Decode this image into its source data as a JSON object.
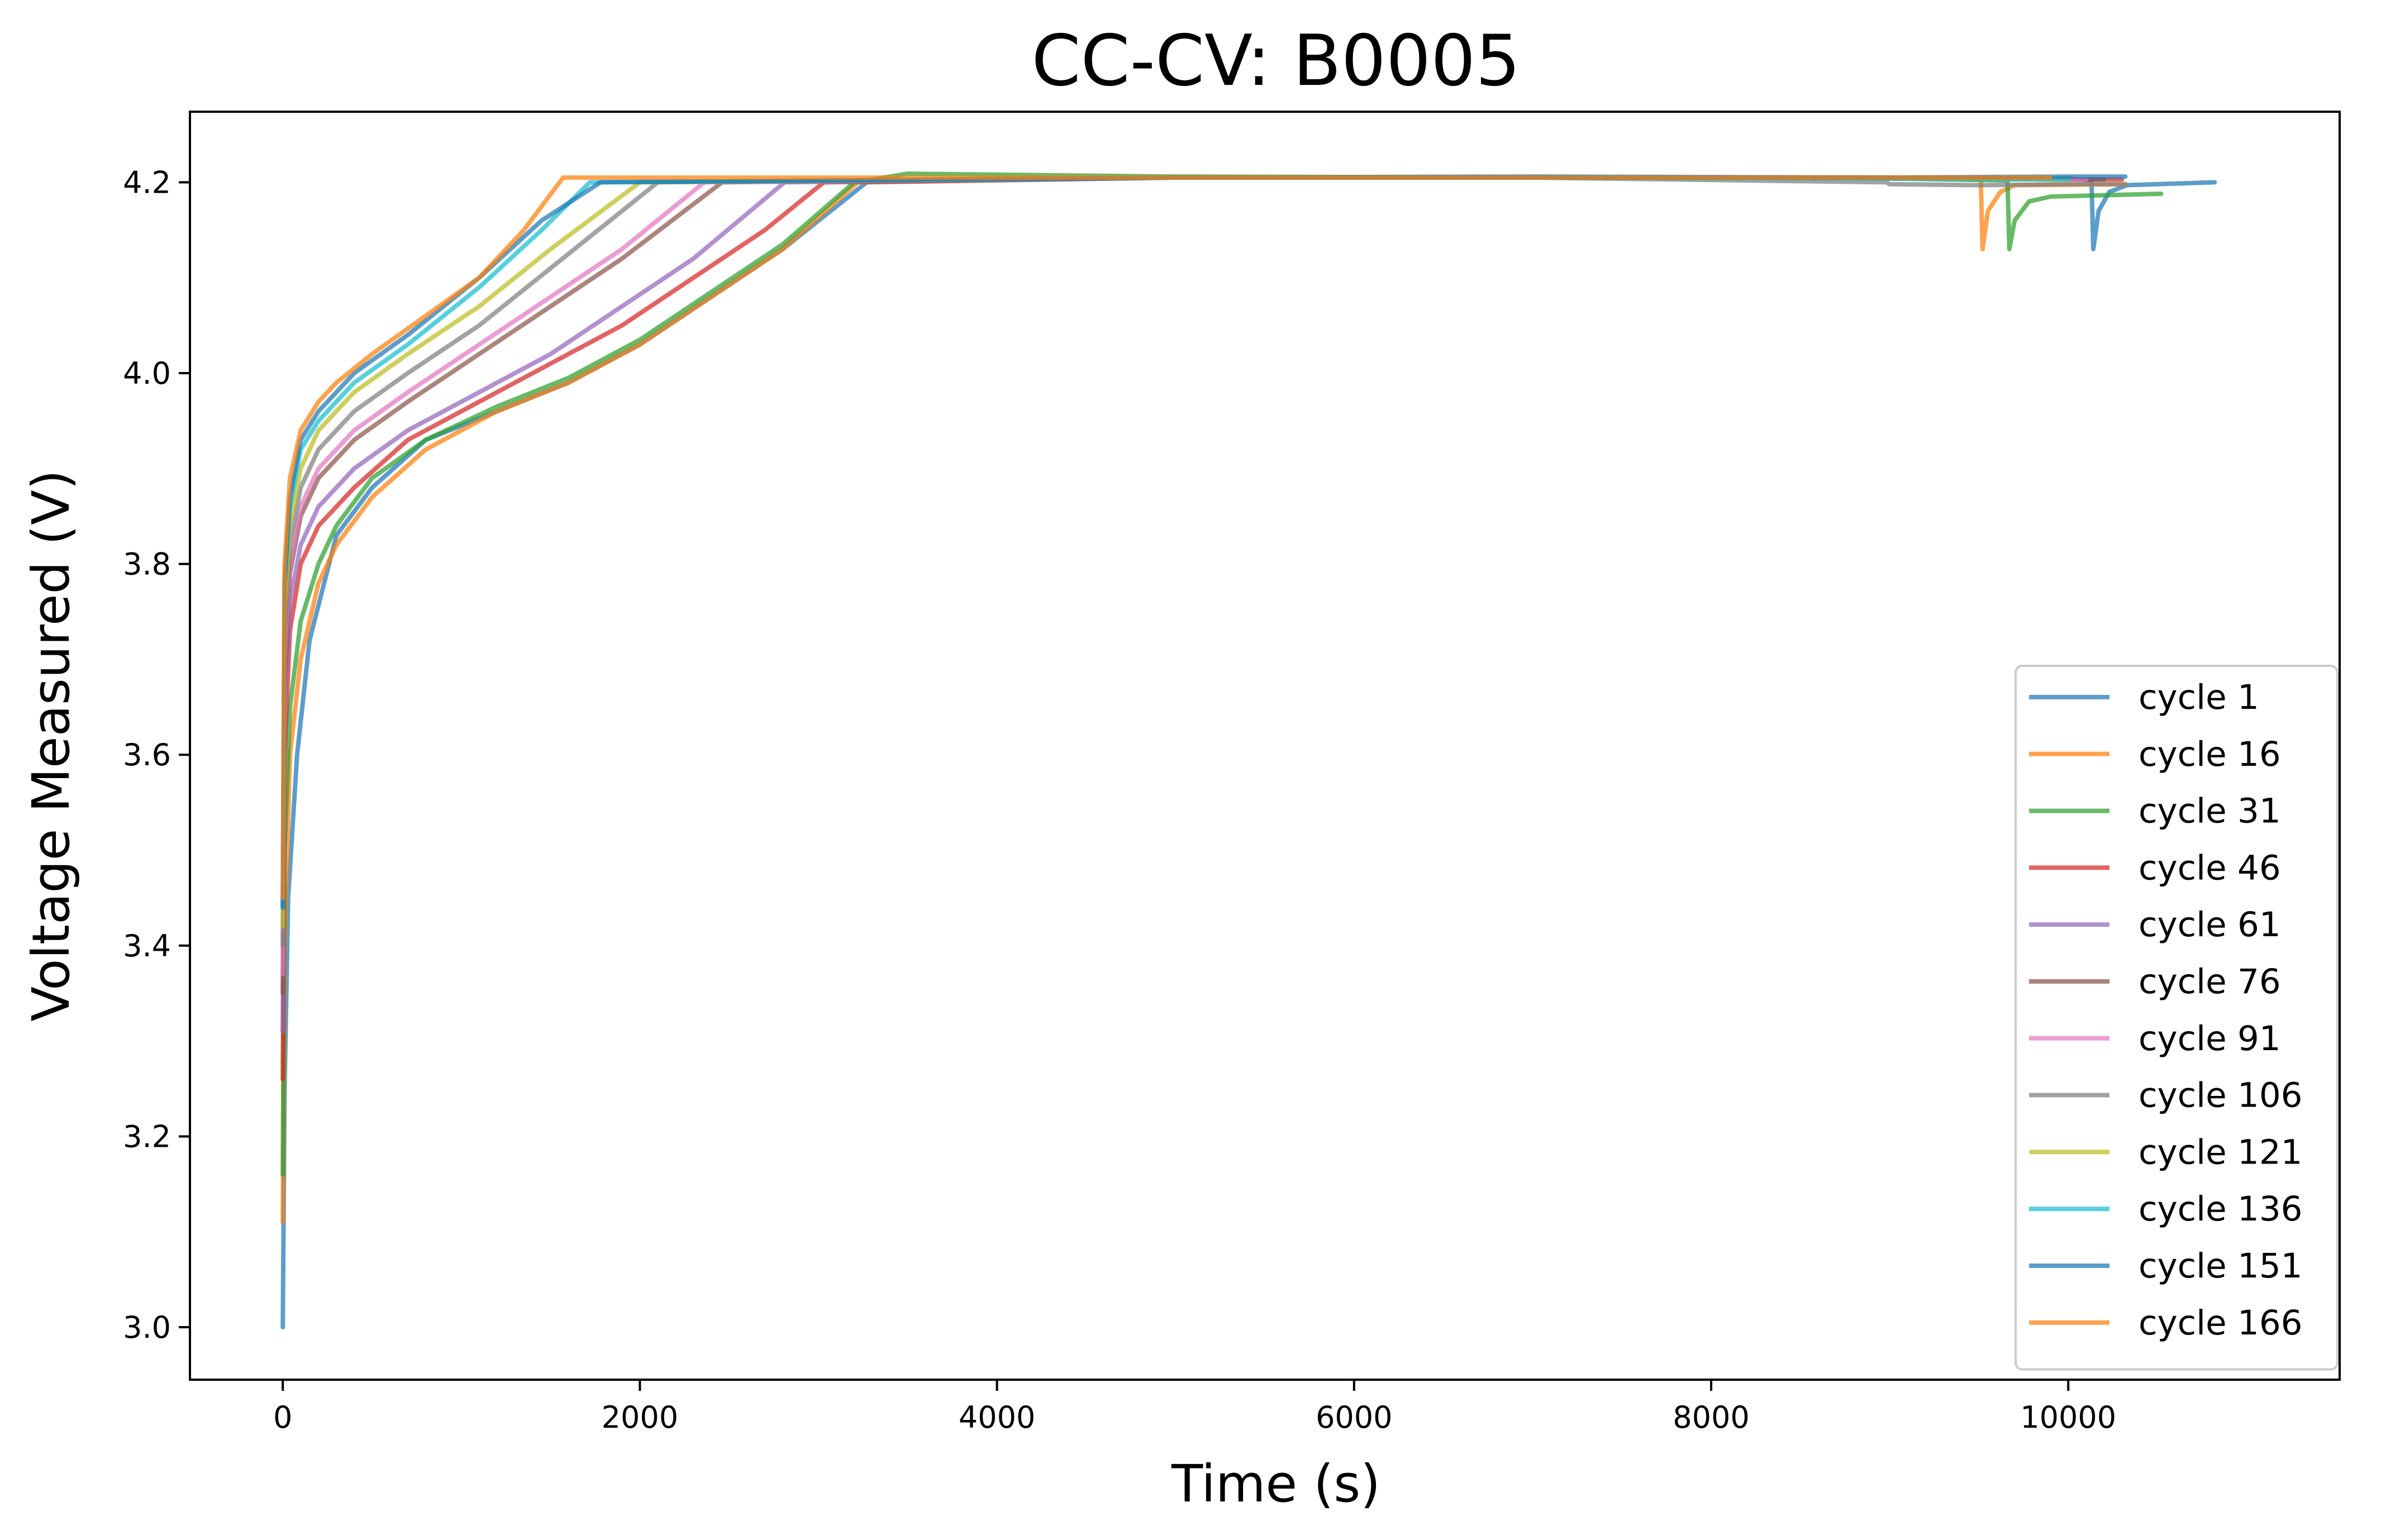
{
  "chart_data": {
    "type": "line",
    "title": "CC-CV: B0005",
    "xlabel": "Time (s)",
    "ylabel": "Voltage Measured (V)",
    "xlim": [
      -520,
      11520
    ],
    "ylim": [
      2.945,
      4.274
    ],
    "xticks": [
      0,
      2000,
      4000,
      6000,
      8000,
      10000
    ],
    "xtick_labels": [
      "0",
      "2000",
      "4000",
      "6000",
      "8000",
      "10000"
    ],
    "yticks": [
      3.0,
      3.2,
      3.4,
      3.6,
      3.8,
      4.0,
      4.2
    ],
    "ytick_labels": [
      "3.0",
      "3.2",
      "3.4",
      "3.6",
      "3.8",
      "4.0",
      "4.2"
    ],
    "grid": false,
    "legend_position": "lower-right",
    "series": [
      {
        "name": "cycle 1",
        "color": "#1f77b4",
        "points": [
          [
            0,
            3.0
          ],
          [
            10,
            3.25
          ],
          [
            30,
            3.45
          ],
          [
            80,
            3.6
          ],
          [
            150,
            3.72
          ],
          [
            300,
            3.83
          ],
          [
            500,
            3.88
          ],
          [
            800,
            3.93
          ],
          [
            1200,
            3.96
          ],
          [
            1600,
            3.99
          ],
          [
            2000,
            4.03
          ],
          [
            2400,
            4.08
          ],
          [
            2800,
            4.13
          ],
          [
            3270,
            4.2
          ],
          [
            5000,
            4.205
          ],
          [
            7000,
            4.206
          ],
          [
            9000,
            4.205
          ],
          [
            10000,
            4.204
          ],
          [
            10130,
            4.202
          ],
          [
            10140,
            4.13
          ],
          [
            10170,
            4.17
          ],
          [
            10230,
            4.19
          ],
          [
            10330,
            4.197
          ],
          [
            10820,
            4.2
          ]
        ]
      },
      {
        "name": "cycle 16",
        "color": "#ff7f0e",
        "points": [
          [
            0,
            3.11
          ],
          [
            10,
            3.4
          ],
          [
            40,
            3.6
          ],
          [
            100,
            3.7
          ],
          [
            200,
            3.78
          ],
          [
            300,
            3.82
          ],
          [
            500,
            3.87
          ],
          [
            800,
            3.92
          ],
          [
            1200,
            3.96
          ],
          [
            1600,
            3.99
          ],
          [
            2000,
            4.03
          ],
          [
            2400,
            4.08
          ],
          [
            2800,
            4.13
          ],
          [
            3220,
            4.2
          ],
          [
            5000,
            4.205
          ],
          [
            7000,
            4.205
          ],
          [
            9000,
            4.204
          ],
          [
            9510,
            4.203
          ],
          [
            9520,
            4.13
          ],
          [
            9550,
            4.17
          ],
          [
            9620,
            4.19
          ],
          [
            9700,
            4.197
          ],
          [
            10320,
            4.198
          ]
        ]
      },
      {
        "name": "cycle 31",
        "color": "#2ca02c",
        "points": [
          [
            0,
            3.16
          ],
          [
            10,
            3.5
          ],
          [
            40,
            3.65
          ],
          [
            100,
            3.74
          ],
          [
            200,
            3.8
          ],
          [
            300,
            3.84
          ],
          [
            500,
            3.89
          ],
          [
            800,
            3.93
          ],
          [
            1200,
            3.965
          ],
          [
            1600,
            3.995
          ],
          [
            2000,
            4.035
          ],
          [
            2400,
            4.085
          ],
          [
            2800,
            4.135
          ],
          [
            3200,
            4.2
          ],
          [
            3500,
            4.209
          ],
          [
            5000,
            4.206
          ],
          [
            7000,
            4.205
          ],
          [
            9000,
            4.204
          ],
          [
            9660,
            4.202
          ],
          [
            9670,
            4.13
          ],
          [
            9700,
            4.16
          ],
          [
            9780,
            4.18
          ],
          [
            9900,
            4.185
          ],
          [
            10520,
            4.188
          ]
        ]
      },
      {
        "name": "cycle 46",
        "color": "#d62728",
        "points": [
          [
            0,
            3.26
          ],
          [
            10,
            3.6
          ],
          [
            40,
            3.73
          ],
          [
            100,
            3.8
          ],
          [
            200,
            3.84
          ],
          [
            400,
            3.88
          ],
          [
            700,
            3.93
          ],
          [
            1100,
            3.97
          ],
          [
            1500,
            4.01
          ],
          [
            1900,
            4.05
          ],
          [
            2300,
            4.1
          ],
          [
            2700,
            4.15
          ],
          [
            3030,
            4.2
          ],
          [
            5000,
            4.205
          ],
          [
            7000,
            4.205
          ],
          [
            9000,
            4.204
          ],
          [
            10000,
            4.203
          ],
          [
            10300,
            4.203
          ]
        ]
      },
      {
        "name": "cycle 61",
        "color": "#9467bd",
        "points": [
          [
            0,
            3.31
          ],
          [
            10,
            3.65
          ],
          [
            40,
            3.76
          ],
          [
            100,
            3.82
          ],
          [
            200,
            3.86
          ],
          [
            400,
            3.9
          ],
          [
            700,
            3.94
          ],
          [
            1100,
            3.98
          ],
          [
            1500,
            4.02
          ],
          [
            1900,
            4.07
          ],
          [
            2300,
            4.12
          ],
          [
            2810,
            4.2
          ],
          [
            5000,
            4.205
          ],
          [
            7000,
            4.205
          ],
          [
            9000,
            4.204
          ],
          [
            10000,
            4.203
          ],
          [
            10200,
            4.203
          ]
        ]
      },
      {
        "name": "cycle 76",
        "color": "#8c564b",
        "points": [
          [
            0,
            3.35
          ],
          [
            10,
            3.68
          ],
          [
            40,
            3.79
          ],
          [
            100,
            3.85
          ],
          [
            200,
            3.89
          ],
          [
            400,
            3.93
          ],
          [
            700,
            3.97
          ],
          [
            1100,
            4.02
          ],
          [
            1500,
            4.07
          ],
          [
            1900,
            4.12
          ],
          [
            2460,
            4.2
          ],
          [
            5000,
            4.205
          ],
          [
            7000,
            4.205
          ],
          [
            9000,
            4.204
          ],
          [
            10200,
            4.203
          ]
        ]
      },
      {
        "name": "cycle 91",
        "color": "#e377c2",
        "points": [
          [
            0,
            3.37
          ],
          [
            10,
            3.7
          ],
          [
            40,
            3.8
          ],
          [
            100,
            3.86
          ],
          [
            200,
            3.9
          ],
          [
            400,
            3.94
          ],
          [
            700,
            3.98
          ],
          [
            1100,
            4.03
          ],
          [
            1500,
            4.08
          ],
          [
            1900,
            4.13
          ],
          [
            2360,
            4.2
          ],
          [
            5000,
            4.205
          ],
          [
            7000,
            4.205
          ],
          [
            9000,
            4.204
          ],
          [
            10100,
            4.203
          ]
        ]
      },
      {
        "name": "cycle 106",
        "color": "#7f7f7f",
        "points": [
          [
            0,
            3.4
          ],
          [
            10,
            3.72
          ],
          [
            40,
            3.82
          ],
          [
            100,
            3.88
          ],
          [
            200,
            3.92
          ],
          [
            400,
            3.96
          ],
          [
            700,
            4.0
          ],
          [
            1100,
            4.05
          ],
          [
            1500,
            4.11
          ],
          [
            2100,
            4.2
          ],
          [
            5000,
            4.205
          ],
          [
            7000,
            4.205
          ],
          [
            8980,
            4.2
          ],
          [
            9000,
            4.198
          ],
          [
            9500,
            4.197
          ],
          [
            10000,
            4.198
          ],
          [
            10320,
            4.198
          ]
        ]
      },
      {
        "name": "cycle 121",
        "color": "#bcbd22",
        "points": [
          [
            0,
            3.42
          ],
          [
            10,
            3.75
          ],
          [
            40,
            3.84
          ],
          [
            100,
            3.9
          ],
          [
            200,
            3.94
          ],
          [
            400,
            3.98
          ],
          [
            700,
            4.02
          ],
          [
            1100,
            4.07
          ],
          [
            1500,
            4.13
          ],
          [
            2000,
            4.2
          ],
          [
            5000,
            4.205
          ],
          [
            7000,
            4.205
          ],
          [
            9000,
            4.204
          ],
          [
            10000,
            4.203
          ]
        ]
      },
      {
        "name": "cycle 136",
        "color": "#17becf",
        "points": [
          [
            0,
            3.44
          ],
          [
            10,
            3.78
          ],
          [
            40,
            3.86
          ],
          [
            100,
            3.92
          ],
          [
            200,
            3.95
          ],
          [
            400,
            3.99
          ],
          [
            700,
            4.03
          ],
          [
            1100,
            4.09
          ],
          [
            1450,
            4.15
          ],
          [
            1720,
            4.2
          ],
          [
            5000,
            4.205
          ],
          [
            7000,
            4.205
          ],
          [
            9000,
            4.204
          ],
          [
            10000,
            4.203
          ]
        ]
      },
      {
        "name": "cycle 151",
        "color": "#1f77b4",
        "points": [
          [
            0,
            3.44
          ],
          [
            10,
            3.78
          ],
          [
            40,
            3.87
          ],
          [
            100,
            3.93
          ],
          [
            200,
            3.96
          ],
          [
            400,
            4.0
          ],
          [
            700,
            4.04
          ],
          [
            1100,
            4.1
          ],
          [
            1450,
            4.16
          ],
          [
            1780,
            4.2
          ],
          [
            5000,
            4.205
          ],
          [
            7000,
            4.205
          ],
          [
            9000,
            4.205
          ],
          [
            10000,
            4.206
          ],
          [
            10320,
            4.206
          ]
        ]
      },
      {
        "name": "cycle 166",
        "color": "#ff7f0e",
        "points": [
          [
            0,
            3.45
          ],
          [
            10,
            3.8
          ],
          [
            40,
            3.89
          ],
          [
            100,
            3.94
          ],
          [
            200,
            3.97
          ],
          [
            300,
            3.99
          ],
          [
            500,
            4.02
          ],
          [
            800,
            4.06
          ],
          [
            1100,
            4.1
          ],
          [
            1350,
            4.15
          ],
          [
            1570,
            4.205
          ],
          [
            5000,
            4.205
          ],
          [
            7000,
            4.205
          ],
          [
            9000,
            4.205
          ],
          [
            9900,
            4.205
          ]
        ]
      }
    ]
  }
}
